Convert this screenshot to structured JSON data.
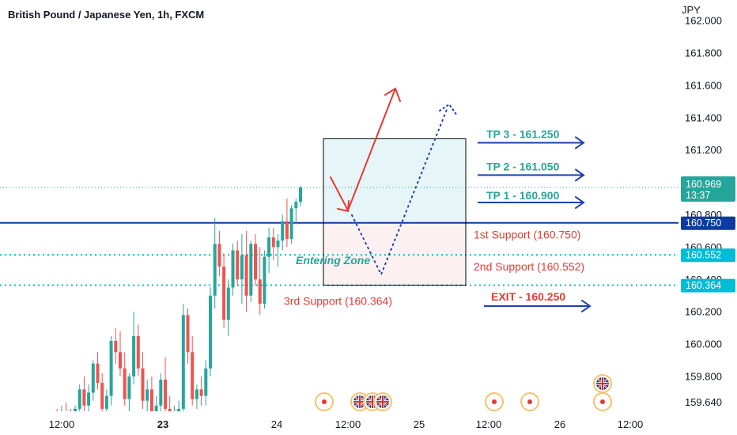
{
  "title": "British Pound / Japanese Yen, 1h, FXCM",
  "colors": {
    "up": "#26a69a",
    "down": "#ef5350",
    "support_blue": "#0d3b9e",
    "dotted_teal": "#26a69a",
    "arrow_blue": "#1e40af",
    "arrow_red": "#e53935",
    "tp_zone": "#e6f6f8",
    "sl_zone": "#fdf0f0",
    "badge_navy": "#0d3b9e",
    "badge_cyan": "#00bcd4",
    "badge_teal": "#26a69a"
  },
  "chart_data": {
    "type": "candlestick",
    "symbol": "GBPJPY",
    "yaxis": {
      "unit": "JPY",
      "ylim": [
        159.53,
        162.03
      ],
      "ticks": [
        "162.000",
        "161.800",
        "161.600",
        "161.400",
        "161.200",
        "161.000",
        "160.800",
        "160.600",
        "160.400",
        "160.200",
        "160.000",
        "159.800",
        "159.640"
      ]
    },
    "xaxis": {
      "ticks": [
        {
          "label": "12:00",
          "bold": false
        },
        {
          "label": "23",
          "bold": true
        },
        {
          "label": "24",
          "bold": false
        },
        {
          "label": "12:00",
          "bold": false
        },
        {
          "label": "25",
          "bold": false
        },
        {
          "label": "12:00",
          "bold": false
        },
        {
          "label": "26",
          "bold": false
        },
        {
          "label": "12:00",
          "bold": false
        }
      ]
    },
    "candles": [
      {
        "o": 159.56,
        "h": 159.6,
        "l": 159.5,
        "c": 159.54
      },
      {
        "o": 159.54,
        "h": 159.62,
        "l": 159.5,
        "c": 159.58
      },
      {
        "o": 159.58,
        "h": 159.64,
        "l": 159.52,
        "c": 159.55
      },
      {
        "o": 159.55,
        "h": 159.6,
        "l": 159.5,
        "c": 159.53
      },
      {
        "o": 159.53,
        "h": 159.62,
        "l": 159.5,
        "c": 159.6
      },
      {
        "o": 159.6,
        "h": 159.75,
        "l": 159.55,
        "c": 159.72
      },
      {
        "o": 159.72,
        "h": 159.8,
        "l": 159.58,
        "c": 159.62
      },
      {
        "o": 159.62,
        "h": 159.75,
        "l": 159.55,
        "c": 159.7
      },
      {
        "o": 159.7,
        "h": 159.9,
        "l": 159.65,
        "c": 159.88
      },
      {
        "o": 159.88,
        "h": 159.95,
        "l": 159.72,
        "c": 159.76
      },
      {
        "o": 159.76,
        "h": 159.82,
        "l": 159.55,
        "c": 159.6
      },
      {
        "o": 159.6,
        "h": 159.72,
        "l": 159.52,
        "c": 159.68
      },
      {
        "o": 159.68,
        "h": 160.05,
        "l": 159.62,
        "c": 160.02
      },
      {
        "o": 160.02,
        "h": 160.1,
        "l": 159.88,
        "c": 159.95
      },
      {
        "o": 159.95,
        "h": 160.08,
        "l": 159.8,
        "c": 159.85
      },
      {
        "o": 159.85,
        "h": 159.95,
        "l": 159.62,
        "c": 159.66
      },
      {
        "o": 159.66,
        "h": 159.82,
        "l": 159.58,
        "c": 159.8
      },
      {
        "o": 159.8,
        "h": 160.2,
        "l": 159.75,
        "c": 160.05
      },
      {
        "o": 160.05,
        "h": 160.12,
        "l": 159.8,
        "c": 159.85
      },
      {
        "o": 159.85,
        "h": 159.95,
        "l": 159.6,
        "c": 159.65
      },
      {
        "o": 159.65,
        "h": 159.78,
        "l": 159.57,
        "c": 159.72
      },
      {
        "o": 159.72,
        "h": 159.8,
        "l": 159.52,
        "c": 159.56
      },
      {
        "o": 159.56,
        "h": 159.68,
        "l": 159.5,
        "c": 159.62
      },
      {
        "o": 159.62,
        "h": 159.82,
        "l": 159.58,
        "c": 159.78
      },
      {
        "o": 159.78,
        "h": 159.92,
        "l": 159.55,
        "c": 159.6
      },
      {
        "o": 159.6,
        "h": 159.68,
        "l": 159.5,
        "c": 159.55
      },
      {
        "o": 159.55,
        "h": 159.62,
        "l": 159.5,
        "c": 159.57
      },
      {
        "o": 159.57,
        "h": 159.65,
        "l": 159.52,
        "c": 159.6
      },
      {
        "o": 159.6,
        "h": 160.25,
        "l": 159.57,
        "c": 160.18
      },
      {
        "o": 160.18,
        "h": 160.22,
        "l": 159.88,
        "c": 159.95
      },
      {
        "o": 159.95,
        "h": 160.05,
        "l": 159.62,
        "c": 159.66
      },
      {
        "o": 159.66,
        "h": 159.75,
        "l": 159.6,
        "c": 159.72
      },
      {
        "o": 159.72,
        "h": 159.8,
        "l": 159.62,
        "c": 159.68
      },
      {
        "o": 159.68,
        "h": 159.9,
        "l": 159.62,
        "c": 159.85
      },
      {
        "o": 159.85,
        "h": 160.35,
        "l": 159.8,
        "c": 160.3
      },
      {
        "o": 160.3,
        "h": 160.78,
        "l": 160.22,
        "c": 160.62
      },
      {
        "o": 160.62,
        "h": 160.7,
        "l": 160.42,
        "c": 160.48
      },
      {
        "o": 160.48,
        "h": 160.56,
        "l": 160.1,
        "c": 160.15
      },
      {
        "o": 160.15,
        "h": 160.4,
        "l": 160.05,
        "c": 160.35
      },
      {
        "o": 160.35,
        "h": 160.62,
        "l": 160.3,
        "c": 160.58
      },
      {
        "o": 160.58,
        "h": 160.64,
        "l": 160.36,
        "c": 160.4
      },
      {
        "o": 160.4,
        "h": 160.68,
        "l": 160.25,
        "c": 160.55
      },
      {
        "o": 160.55,
        "h": 160.7,
        "l": 160.2,
        "c": 160.3
      },
      {
        "o": 160.3,
        "h": 160.64,
        "l": 160.26,
        "c": 160.62
      },
      {
        "o": 160.62,
        "h": 160.68,
        "l": 160.36,
        "c": 160.4
      },
      {
        "o": 160.4,
        "h": 160.6,
        "l": 160.18,
        "c": 160.25
      },
      {
        "o": 160.25,
        "h": 160.58,
        "l": 160.22,
        "c": 160.54
      },
      {
        "o": 160.54,
        "h": 160.72,
        "l": 160.44,
        "c": 160.66
      },
      {
        "o": 160.66,
        "h": 160.72,
        "l": 160.52,
        "c": 160.6
      },
      {
        "o": 160.6,
        "h": 160.68,
        "l": 160.48,
        "c": 160.64
      },
      {
        "o": 160.64,
        "h": 160.8,
        "l": 160.58,
        "c": 160.76
      },
      {
        "o": 160.76,
        "h": 160.9,
        "l": 160.6,
        "c": 160.65
      },
      {
        "o": 160.65,
        "h": 160.86,
        "l": 160.62,
        "c": 160.84
      },
      {
        "o": 160.84,
        "h": 160.9,
        "l": 160.74,
        "c": 160.88
      },
      {
        "o": 160.88,
        "h": 160.98,
        "l": 160.85,
        "c": 160.969
      }
    ],
    "levels": [
      {
        "name": "last_price",
        "value": 160.969,
        "style": "dotted"
      },
      {
        "name": "1st Support",
        "value": 160.75,
        "style": "solid"
      },
      {
        "name": "2nd Support",
        "value": 160.552,
        "style": "dotted"
      },
      {
        "name": "3rd Support",
        "value": 160.364,
        "style": "dotted"
      }
    ],
    "price_badges": [
      {
        "price": 160.969,
        "label": "160.969",
        "sub": "13:37",
        "color": "teal"
      },
      {
        "price": 160.75,
        "label": "160.750",
        "color": "navy"
      },
      {
        "price": 160.552,
        "label": "160.552",
        "color": "cyan"
      },
      {
        "price": 160.364,
        "label": "160.364",
        "color": "cyan"
      }
    ],
    "position": {
      "entry": 160.75,
      "target": 161.27,
      "stop": 160.364
    },
    "annotations": [
      {
        "text": "TP 3 - 161.250",
        "price": 161.25,
        "style": "green"
      },
      {
        "text": "TP 2 - 161.050",
        "price": 161.05,
        "style": "green"
      },
      {
        "text": "TP 1 - 160.900",
        "price": 160.9,
        "style": "green"
      },
      {
        "text": "1st Support (160.750)",
        "price": 160.75,
        "style": "red"
      },
      {
        "text": "2nd Support (160.552)",
        "price": 160.552,
        "style": "red"
      },
      {
        "text": "3rd Support (160.364)",
        "price": 160.364,
        "style": "red"
      },
      {
        "text": "EXIT - 160.250",
        "price": 160.25,
        "style": "red-bold"
      },
      {
        "text": "Entering Zone",
        "price": 160.552,
        "style": "teal-italic"
      }
    ],
    "events": [
      {
        "type": "economic"
      },
      {
        "type": "uk-flag"
      },
      {
        "type": "uk-flag"
      },
      {
        "type": "uk-flag"
      },
      {
        "type": "economic"
      },
      {
        "type": "economic"
      },
      {
        "type": "economic"
      },
      {
        "type": "uk-flag"
      }
    ]
  }
}
